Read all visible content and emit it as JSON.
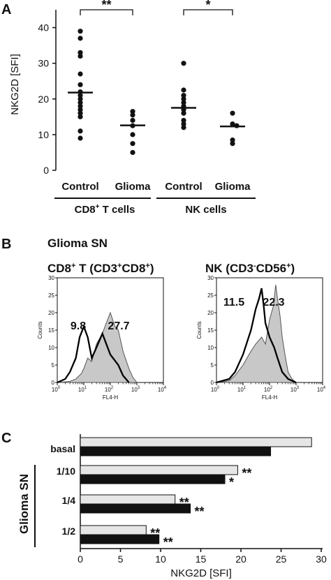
{
  "panel_a": {
    "letter": "A",
    "ylabel": "NKG2D [SFI]",
    "yticks": [
      "0",
      "10",
      "20",
      "30",
      "40"
    ],
    "categories": [
      "Control",
      "Glioma",
      "Control",
      "Glioma"
    ],
    "group_left": "CD8",
    "group_left_sup": "+",
    "group_left_rest": " T cells",
    "group_right": "NK cells",
    "sig_left": "**",
    "sig_right": "*"
  },
  "panel_b": {
    "letter": "B",
    "subtitle": "Glioma SN",
    "left": {
      "title_parts": [
        "CD8",
        "+",
        " T (CD3",
        "+",
        "CD8",
        "+",
        ")"
      ],
      "value_a": "9.8",
      "value_b": "27.7"
    },
    "right": {
      "title_parts": [
        "NK (CD3",
        "-",
        "CD56",
        "+",
        ")"
      ],
      "value_a": "11.5",
      "value_b": "22.3"
    },
    "y_label": "Counts",
    "x_label": "FL4-H",
    "y_ticks": [
      "0",
      "5",
      "10",
      "15",
      "20",
      "25",
      "30"
    ],
    "x_tick_base": "10",
    "x_tick_exps": [
      "0",
      "1",
      "2",
      "3",
      "4"
    ]
  },
  "panel_c": {
    "letter": "C",
    "vertical_label": "Glioma SN",
    "xlabel": "NKG2D [SFI]",
    "xticks": [
      "0",
      "5",
      "10",
      "15",
      "20",
      "25",
      "30"
    ],
    "categories": [
      "basal",
      "1/10",
      "1/4",
      "1/2"
    ],
    "sig_labels": [
      "**",
      "*",
      "**",
      "**",
      "**",
      "**"
    ]
  },
  "chart_data": [
    {
      "type": "scatter",
      "title": "",
      "xlabel": "",
      "ylabel": "NKG2D [SFI]",
      "ylim": [
        0,
        45
      ],
      "categories": [
        "Control",
        "Glioma",
        "Control",
        "Glioma"
      ],
      "groups": [
        "CD8+ T cells",
        "CD8+ T cells",
        "NK cells",
        "NK cells"
      ],
      "points": [
        [
          39,
          37,
          33,
          32,
          27,
          24,
          22,
          21,
          20,
          19,
          18,
          17,
          16,
          15,
          11,
          9
        ],
        [
          16.5,
          15.5,
          14,
          12.5,
          10,
          7.5,
          5
        ],
        [
          30,
          22.5,
          21,
          20,
          19,
          18,
          17,
          16,
          14,
          13,
          12
        ],
        [
          16,
          13,
          12.5,
          8.5,
          7.5
        ]
      ],
      "medians": [
        21.8,
        12.6,
        17.5,
        12.3
      ],
      "significance": [
        {
          "pair": [
            0,
            1
          ],
          "label": "**"
        },
        {
          "pair": [
            2,
            3
          ],
          "label": "*"
        }
      ]
    },
    {
      "type": "area",
      "title": "CD8+ T (CD3+CD8+)",
      "xlabel": "FL4-H",
      "ylabel": "Counts",
      "x_scale": "log",
      "xlim": [
        1,
        10000
      ],
      "ylim": [
        0,
        30
      ],
      "series": [
        {
          "fill": "#c8c8c8",
          "x": [
            1,
            3,
            5,
            8,
            10,
            14,
            20,
            30,
            50,
            70,
            100,
            150,
            200,
            300,
            500,
            700,
            1000
          ],
          "values": [
            0,
            0.3,
            1,
            2.5,
            4,
            7,
            6,
            11,
            14,
            17,
            20,
            16,
            15,
            9,
            4,
            1.5,
            0
          ]
        },
        {
          "fill": "none",
          "x": [
            1,
            2,
            3,
            5,
            7,
            10,
            14,
            20,
            30,
            50,
            100,
            200,
            300,
            500
          ],
          "values": [
            0,
            1,
            3,
            7,
            13,
            16,
            13,
            7,
            10,
            14,
            8,
            5,
            2,
            0
          ]
        }
      ],
      "labels": [
        "9.8",
        "27.7"
      ]
    },
    {
      "type": "area",
      "title": "NK (CD3-CD56+)",
      "xlabel": "FL4-H",
      "ylabel": "Counts",
      "x_scale": "log",
      "xlim": [
        1,
        10000
      ],
      "ylim": [
        0,
        30
      ],
      "series": [
        {
          "fill": "#c8c8c8",
          "x": [
            1,
            3,
            5,
            10,
            20,
            30,
            50,
            70,
            100,
            140,
            170,
            200,
            250,
            300,
            400,
            500,
            700,
            1000
          ],
          "values": [
            0,
            0.5,
            2,
            5,
            9,
            11,
            13,
            11,
            18,
            22,
            28,
            24,
            19,
            13,
            7,
            3,
            1,
            0
          ]
        },
        {
          "fill": "none",
          "x": [
            1,
            3,
            5,
            10,
            20,
            30,
            40,
            50,
            60,
            70,
            100,
            150,
            200,
            300,
            500,
            1000
          ],
          "values": [
            0,
            1,
            3,
            8,
            15,
            21,
            24,
            27,
            22,
            17,
            13,
            10,
            7,
            3,
            1,
            0
          ]
        }
      ],
      "labels": [
        "11.5",
        "22.3"
      ]
    },
    {
      "type": "bar",
      "orientation": "horizontal",
      "title": "",
      "xlabel": "NKG2D [SFI]",
      "xlim": [
        0,
        30
      ],
      "categories": [
        "basal",
        "1/10",
        "1/4",
        "1/2"
      ],
      "series": [
        {
          "fill": "#e6e6e6",
          "values": [
            28.8,
            19.6,
            11.8,
            8.2
          ]
        },
        {
          "fill": "#111111",
          "values": [
            23.7,
            18.0,
            13.7,
            9.8
          ]
        }
      ]
    }
  ]
}
